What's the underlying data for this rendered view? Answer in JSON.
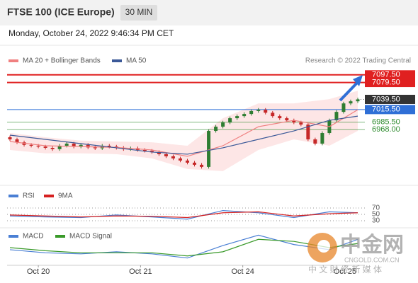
{
  "header": {
    "title": "FTSE 100 (ICE Europe)",
    "interval": "30 MIN",
    "datetime": "Monday, October 24, 2022 9:46:34 PM CET"
  },
  "chart_data": [
    {
      "type": "candlestick",
      "credit": "Research © 2022 Trading Central",
      "xlim": [
        -0.4,
        49.5
      ],
      "ylim": [
        6843,
        7149
      ],
      "xticks": [
        {
          "value": 4,
          "label": "Oct 20"
        },
        {
          "value": 18.4,
          "label": "Oct 21"
        },
        {
          "value": 32.8,
          "label": "Oct 24"
        },
        {
          "value": 47.2,
          "label": "Oct 25"
        }
      ],
      "up_color": "#2e7d32",
      "down_color": "#c62828",
      "open": [
        6950,
        6945,
        6938,
        6932,
        6930,
        6928,
        6925,
        6922,
        6930,
        6935,
        6928,
        6932,
        6926,
        6924,
        6930,
        6928,
        6925,
        6922,
        6924,
        6920,
        6918,
        6915,
        6910,
        6905,
        6900,
        6895,
        6890,
        6885,
        6880,
        6965,
        6975,
        6985,
        6995,
        7000,
        7005,
        7012,
        7015,
        7008,
        7000,
        6995,
        6990,
        6985,
        6980,
        6945,
        6935,
        6960,
        6990,
        7010,
        7030,
        7035
      ],
      "high": [
        6954,
        6949,
        6942,
        6936,
        6934,
        6932,
        6929,
        6934,
        6939,
        6939,
        6936,
        6936,
        6930,
        6934,
        6934,
        6932,
        6929,
        6928,
        6928,
        6924,
        6922,
        6919,
        6914,
        6909,
        6904,
        6899,
        6894,
        6889,
        6969,
        6979,
        6989,
        6999,
        7004,
        7009,
        7016,
        7019,
        7019,
        7012,
        7004,
        6999,
        6994,
        6989,
        6984,
        6949,
        6964,
        6994,
        7014,
        7034,
        7039,
        7043.5
      ],
      "low": [
        6941,
        6934,
        6928,
        6926,
        6924,
        6921,
        6918,
        6918,
        6926,
        6924,
        6924,
        6922,
        6920,
        6920,
        6924,
        6921,
        6918,
        6918,
        6916,
        6914,
        6911,
        6906,
        6901,
        6896,
        6891,
        6886,
        6881,
        6876,
        6876,
        6961,
        6971,
        6981,
        6991,
        6996,
        7001,
        7008,
        7004,
        6996,
        6991,
        6986,
        6981,
        6976,
        6941,
        6931,
        6931,
        6956,
        6986,
        7006,
        7026,
        7031
      ],
      "close": [
        6945,
        6938,
        6932,
        6930,
        6928,
        6925,
        6922,
        6930,
        6935,
        6928,
        6932,
        6926,
        6924,
        6930,
        6928,
        6925,
        6922,
        6924,
        6920,
        6918,
        6915,
        6910,
        6905,
        6900,
        6895,
        6890,
        6885,
        6880,
        6965,
        6975,
        6985,
        6995,
        7000,
        7005,
        7012,
        7015,
        7008,
        7000,
        6995,
        6990,
        6985,
        6980,
        6945,
        6935,
        6960,
        6990,
        7010,
        7030,
        7035,
        7039.5
      ],
      "series": [
        {
          "name": "MA 20 + Bollinger Bands",
          "color": "#f08080",
          "band_color": "#fde0e0",
          "x": [
            0,
            5,
            10,
            15,
            20,
            25,
            30,
            35,
            40,
            45,
            49
          ],
          "values": [
            6940,
            6930,
            6928,
            6926,
            6920,
            6905,
            6930,
            6975,
            6990,
            6975,
            7015
          ],
          "upper": [
            6960,
            6950,
            6942,
            6940,
            6938,
            6930,
            6995,
            7030,
            7030,
            7040,
            7060
          ],
          "lower": [
            6920,
            6912,
            6912,
            6910,
            6900,
            6875,
            6870,
            6920,
            6945,
            6930,
            6965
          ]
        },
        {
          "name": "MA 50",
          "color": "#3b5998",
          "x": [
            0,
            5,
            10,
            15,
            20,
            25,
            30,
            35,
            40,
            45,
            49
          ],
          "values": [
            6955,
            6945,
            6935,
            6925,
            6915,
            6910,
            6925,
            6945,
            6965,
            6990,
            7000
          ]
        }
      ],
      "levels": [
        {
          "value": 7097.5,
          "label": "7097.50",
          "color": "#e02020",
          "boxed": true
        },
        {
          "value": 7079.5,
          "label": "7079.50",
          "color": "#e02020",
          "boxed": true
        },
        {
          "value": 7039.5,
          "label": "7039.50",
          "color": "#333333",
          "boxed": true
        },
        {
          "value": 7015.5,
          "label": "7015.50",
          "color": "#2f6fd6",
          "boxed": true
        },
        {
          "value": 6985.5,
          "label": "6985.50",
          "color": "#2e8b2e",
          "boxed": false
        },
        {
          "value": 6968,
          "label": "6968.00",
          "color": "#2e8b2e",
          "boxed": false
        }
      ]
    },
    {
      "type": "line",
      "xlim": [
        -0.4,
        49.5
      ],
      "ylim": [
        10,
        90
      ],
      "yticks": [
        70,
        50,
        30
      ],
      "series": [
        {
          "name": "RSI",
          "color": "#4a7fd4",
          "x": [
            0,
            5,
            10,
            15,
            20,
            25,
            30,
            35,
            40,
            45,
            49
          ],
          "values": [
            45,
            42,
            40,
            48,
            42,
            35,
            62,
            55,
            40,
            58,
            55
          ]
        },
        {
          "name": "9MA",
          "color": "#d62020",
          "x": [
            0,
            5,
            10,
            15,
            20,
            25,
            30,
            35,
            40,
            45,
            49
          ],
          "values": [
            48,
            45,
            42,
            45,
            44,
            40,
            55,
            58,
            45,
            52,
            55
          ]
        }
      ]
    },
    {
      "type": "line",
      "xlim": [
        -0.4,
        49.5
      ],
      "ylim": [
        -15,
        15
      ],
      "series": [
        {
          "name": "MACD",
          "color": "#4a7fd4",
          "x": [
            0,
            5,
            10,
            15,
            20,
            25,
            30,
            35,
            40,
            45,
            49
          ],
          "values": [
            -2,
            -5,
            -6,
            -4,
            -6,
            -10,
            2,
            12,
            3,
            -2,
            8
          ]
        },
        {
          "name": "MACD Signal",
          "color": "#3a9a2a",
          "x": [
            0,
            5,
            10,
            15,
            20,
            25,
            30,
            35,
            40,
            45,
            49
          ],
          "values": [
            0,
            -3,
            -5,
            -5,
            -5,
            -8,
            -4,
            8,
            6,
            0,
            4
          ]
        }
      ]
    }
  ],
  "watermark": {
    "name": "中金网",
    "url": "CNGOLD.COM.CN",
    "subtitle": "中 文 财 经 新 媒 体"
  }
}
